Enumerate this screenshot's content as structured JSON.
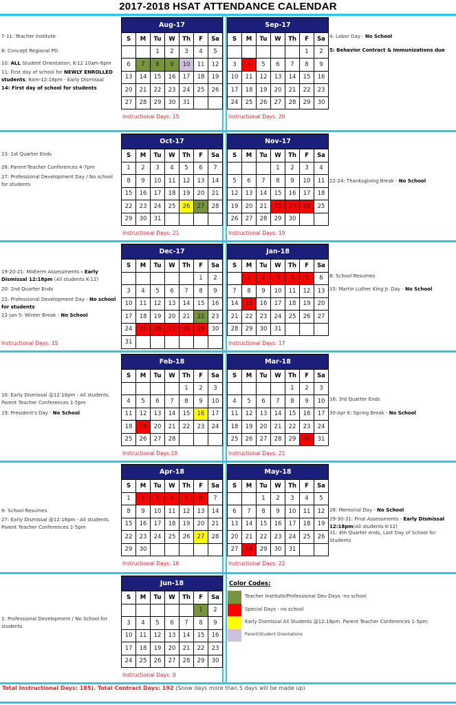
{
  "title": "2017-2018 HSAT ATTENDANCE CALENDAR",
  "day_headers": [
    "S",
    "M",
    "Tu",
    "W",
    "Th",
    "F",
    "Sa"
  ],
  "colors": {
    "green": "#77933c",
    "red": "#ff0000",
    "yellow": "#ffff00",
    "lavender": "#ccc0da",
    "header": "#1c1f7a",
    "divider": "#2bc4f3",
    "accent_text": "#e8202a"
  },
  "months": [
    {
      "name": "Aug-17",
      "start_weekday": 2,
      "days": 31,
      "instructional": "Instructional Days: 15",
      "highlights": {
        "7": "green",
        "8": "green",
        "9": "green",
        "10": "lavender"
      },
      "notes": [
        [
          {
            "t": "7-11: Teacher Institute"
          }
        ],
        [
          {
            "t": "8: Concept Regional PD"
          }
        ],
        [
          {
            "t": "10: "
          },
          {
            "t": "ALL",
            "b": true
          },
          {
            "t": " Student Orientation, K-12  10am-6pm"
          }
        ],
        [
          {
            "t": "11: First day of school for "
          },
          {
            "t": "NEWLY ENROLLED students",
            "b": true
          },
          {
            "t": ", 8am-12:18pm - Early Dismissal"
          }
        ],
        [
          {
            "t": "14: First day of school for students",
            "b": true
          }
        ]
      ]
    },
    {
      "name": "Sep-17",
      "start_weekday": 5,
      "days": 30,
      "instructional": "Instructional Days: 20",
      "highlights": {
        "4": "red"
      },
      "notes": [
        [
          {
            "t": "4: Labor Day - "
          },
          {
            "t": "No School",
            "b": true
          }
        ],
        [
          {
            "t": "5: Behavior Contract & Immunizations due",
            "b": true
          }
        ]
      ]
    },
    {
      "name": "Oct-17",
      "start_weekday": 0,
      "days": 31,
      "instructional": "Instructional Days: 21",
      "highlights": {
        "26": "yellow",
        "27": "green"
      },
      "notes": [
        [
          {
            "t": "13: 1st Quarter Ends"
          }
        ],
        [
          {
            "t": "26: Parent-Teacher Conferences 4-7pm"
          }
        ],
        [
          {
            "t": "27: Professional Development Day /  No school for students"
          }
        ]
      ]
    },
    {
      "name": "Nov-17",
      "start_weekday": 3,
      "days": 30,
      "instructional": "Instructional Days: 19",
      "highlights": {
        "22": "red",
        "23": "red",
        "24": "red"
      },
      "notes": [
        [
          {
            "t": "22-24: Thanksgiving Break - "
          },
          {
            "t": "No School",
            "b": true
          }
        ]
      ]
    },
    {
      "name": "Dec-17",
      "start_weekday": 5,
      "days": 31,
      "instructional": "Instructional Days: 15",
      "highlights": {
        "22": "green",
        "25": "red",
        "26": "red",
        "27": "red",
        "28": "red",
        "29": "red"
      },
      "notes": [
        [
          {
            "t": "19-20-21: Midterm Assessments "
          },
          {
            "t": "- Early Dismissal 12:18pm",
            "b": true
          },
          {
            "t": " (All students K-12)"
          }
        ],
        [
          {
            "t": "20: 2nd Quarter Ends"
          }
        ],
        [
          {
            "t": "22: Professional Development Day - "
          },
          {
            "t": "No school for students",
            "b": true
          }
        ],
        [
          {
            "t": "22-Jan 5: Winter Break - "
          },
          {
            "t": "No School",
            "b": true
          }
        ]
      ]
    },
    {
      "name": "Jan-18",
      "start_weekday": 1,
      "days": 31,
      "instructional": "Instructional Days: 17",
      "highlights": {
        "1": "red",
        "2": "red",
        "3": "red",
        "4": "red",
        "5": "red",
        "15": "red"
      },
      "notes": [
        [
          {
            "t": "8: School Resumes"
          }
        ],
        [
          {
            "t": "15: Martin Luther King Jr. Day - "
          },
          {
            "t": "No School",
            "b": true
          }
        ]
      ]
    },
    {
      "name": "Feb-18",
      "start_weekday": 4,
      "days": 28,
      "instructional": "Instructional Days:19",
      "highlights": {
        "16": "yellow",
        "19": "red"
      },
      "notes": [
        [
          {
            "t": "16: Early Dismissal @12:18pm - All students. Parent Teacher Conferences 1-5pm"
          }
        ],
        [
          {
            "t": "19: President's Day - "
          },
          {
            "t": "No School",
            "b": true
          }
        ]
      ]
    },
    {
      "name": "Mar-18",
      "start_weekday": 4,
      "days": 31,
      "instructional": "Instructional Days: 21",
      "highlights": {
        "30": "red"
      },
      "notes": [
        [
          {
            "t": "16: 3rd Quarter Ends"
          }
        ],
        [
          {
            "t": "30-Apr 6: Spring Break - "
          },
          {
            "t": "No School",
            "b": true
          }
        ]
      ]
    },
    {
      "name": "Apr-18",
      "start_weekday": 0,
      "days": 30,
      "instructional": "Instructional Days: 16",
      "highlights": {
        "2": "red",
        "3": "red",
        "4": "red",
        "5": "red",
        "6": "red",
        "27": "yellow"
      },
      "notes": [
        [
          {
            "t": "9: School Resumes"
          }
        ],
        [
          {
            "t": "27: Early Dismissal @12:18pm - All students. Parent Teacher Conferences 1-5pm"
          }
        ]
      ]
    },
    {
      "name": "May-18",
      "start_weekday": 2,
      "days": 31,
      "instructional": "Instructional Days: 22",
      "highlights": {
        "28": "red"
      },
      "notes": [
        [
          {
            "t": "28: Memorial Day - "
          },
          {
            "t": "No School",
            "b": true
          }
        ],
        [
          {
            "t": "29-30-31: Final Assessments - "
          },
          {
            "t": "Early Dismissal 12:18pm",
            "b": true
          },
          {
            "t": "(All students K-12)"
          }
        ],
        [
          {
            "t": "31: 4th Quarter ends, Last Day of School for Students"
          }
        ]
      ]
    },
    {
      "name": "Jun-18",
      "start_weekday": 5,
      "days": 30,
      "instructional": "Instructional Days: 0",
      "highlights": {
        "1": "green"
      },
      "notes": [
        [
          {
            "t": "1: Professional Development / No School for students"
          }
        ]
      ]
    }
  ],
  "legend": {
    "title": "Color Codes:",
    "items": [
      {
        "color": "green",
        "label": "Teacher Institute/Professional Dev Days -no school"
      },
      {
        "color": "red",
        "label": "Special Days - no school"
      },
      {
        "color": "yellow",
        "label": "Early Dismissal All Students @12:18pm.  Parent Teacher Conferences 1-5pm."
      },
      {
        "color": "lavender",
        "label": "Parent/Student Orientations"
      }
    ]
  },
  "footer": {
    "bold": "Total Instructional Days: 185). Total Contract Days: 192",
    "normal": " (Snow days more than 5 days will be made up)"
  }
}
